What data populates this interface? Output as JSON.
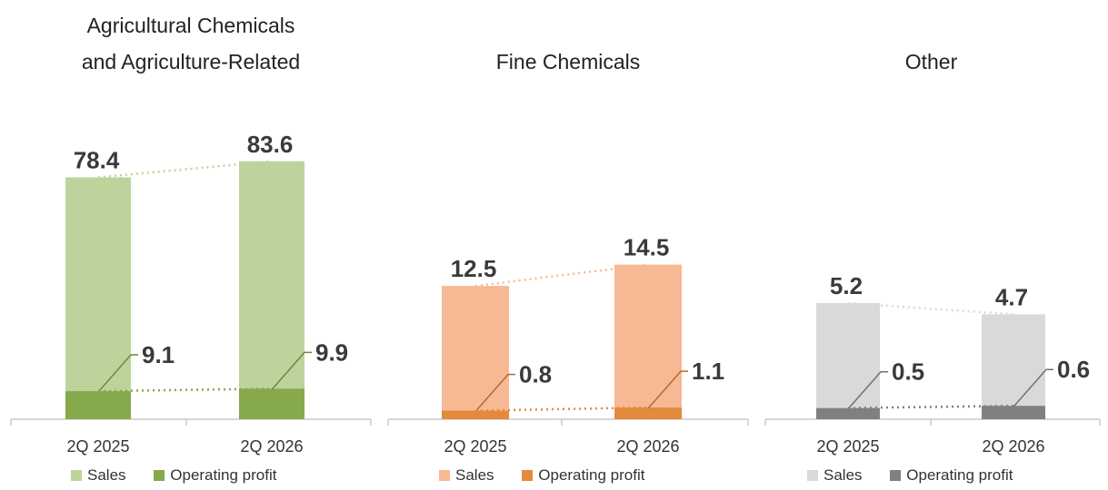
{
  "chart_data": [
    {
      "type": "bar",
      "title_lines": [
        "Agricultural Chemicals",
        "and Agriculture-Related"
      ],
      "categories": [
        "2Q 2025",
        "2Q 2026"
      ],
      "series": [
        {
          "name": "Sales",
          "values": [
            78.4,
            83.6
          ]
        },
        {
          "name": "Operating profit",
          "values": [
            9.1,
            9.9
          ]
        }
      ],
      "data_labels": {
        "sales": [
          "78.4",
          "83.6"
        ],
        "profit": [
          "9.1",
          "9.9"
        ]
      },
      "colors": {
        "sales": "#bdd39c",
        "profit": "#86a94c",
        "line": "#6d8a3c"
      },
      "legend_position": "bottom"
    },
    {
      "type": "bar",
      "title_lines": [
        "Fine Chemicals"
      ],
      "categories": [
        "2Q 2025",
        "2Q 2026"
      ],
      "series": [
        {
          "name": "Sales",
          "values": [
            12.5,
            14.5
          ]
        },
        {
          "name": "Operating profit",
          "values": [
            0.8,
            1.1
          ]
        }
      ],
      "data_labels": {
        "sales": [
          "12.5",
          "14.5"
        ],
        "profit": [
          "0.8",
          "1.1"
        ]
      },
      "colors": {
        "sales": "#f6b994",
        "profit": "#e38a3c",
        "line": "#b56a2c"
      },
      "legend_position": "bottom"
    },
    {
      "type": "bar",
      "title_lines": [
        "Other"
      ],
      "categories": [
        "2Q 2025",
        "2Q 2026"
      ],
      "series": [
        {
          "name": "Sales",
          "values": [
            5.2,
            4.7
          ]
        },
        {
          "name": "Operating profit",
          "values": [
            0.5,
            0.6
          ]
        }
      ],
      "data_labels": {
        "sales": [
          "5.2",
          "4.7"
        ],
        "profit": [
          "0.5",
          "0.6"
        ]
      },
      "colors": {
        "sales": "#d9d9d9",
        "profit": "#808080",
        "line": "#707070"
      },
      "legend_position": "bottom"
    }
  ]
}
